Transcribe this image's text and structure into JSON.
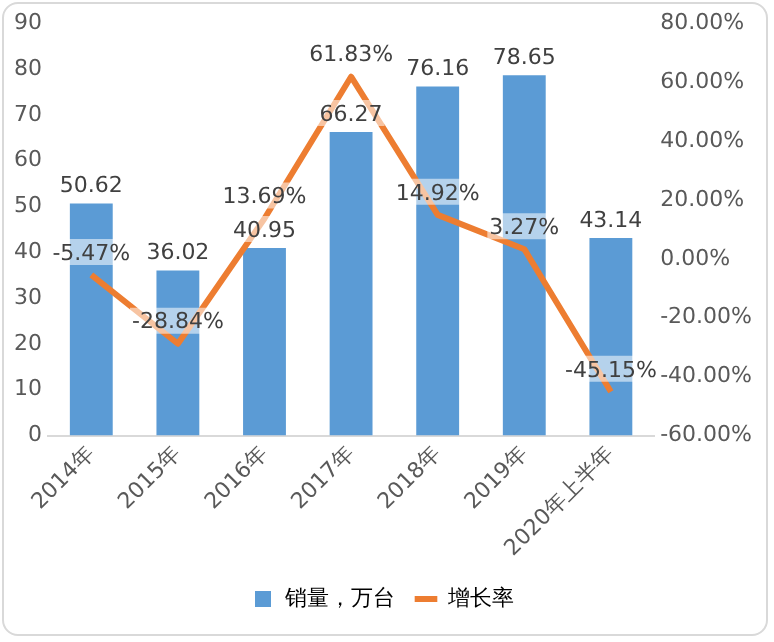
{
  "chart_data": {
    "type": "bar",
    "categories": [
      "2014年",
      "2015年",
      "2016年",
      "2017年",
      "2018年",
      "2019年",
      "2020年上半年"
    ],
    "series": [
      {
        "name": "销量，万台",
        "color": "#5b9bd5",
        "values": [
          50.62,
          36.02,
          40.95,
          66.27,
          76.16,
          78.65,
          43.14
        ],
        "value_labels": [
          "50.62",
          "36.02",
          "40.95",
          "66.27",
          "76.16",
          "78.65",
          "43.14"
        ]
      },
      {
        "name": "增长率",
        "type": "line",
        "axis": "y2",
        "color": "#ed7d31",
        "values": [
          -5.47,
          -28.84,
          13.69,
          61.83,
          14.92,
          3.27,
          -45.15
        ],
        "value_labels": [
          "-5.47%",
          "-28.84%",
          "13.69%",
          "61.83%",
          "14.92%",
          "3.27%",
          "-45.15%"
        ]
      }
    ],
    "ylim": [
      0,
      90
    ],
    "yticks": [
      0,
      10,
      20,
      30,
      40,
      50,
      60,
      70,
      80,
      90
    ],
    "y2lim": [
      -60,
      80
    ],
    "y2ticks": [
      {
        "value": -60,
        "label": "-60.00%"
      },
      {
        "value": -40,
        "label": "-40.00%"
      },
      {
        "value": -20,
        "label": "-20.00%"
      },
      {
        "value": 0,
        "label": "0.00%"
      },
      {
        "value": 20,
        "label": "20.00%"
      },
      {
        "value": 40,
        "label": "40.00%"
      },
      {
        "value": 60,
        "label": "60.00%"
      },
      {
        "value": 80,
        "label": "80.00%"
      }
    ],
    "grid": false,
    "legend": "bottom",
    "marker": "none",
    "line_style": "solid"
  }
}
